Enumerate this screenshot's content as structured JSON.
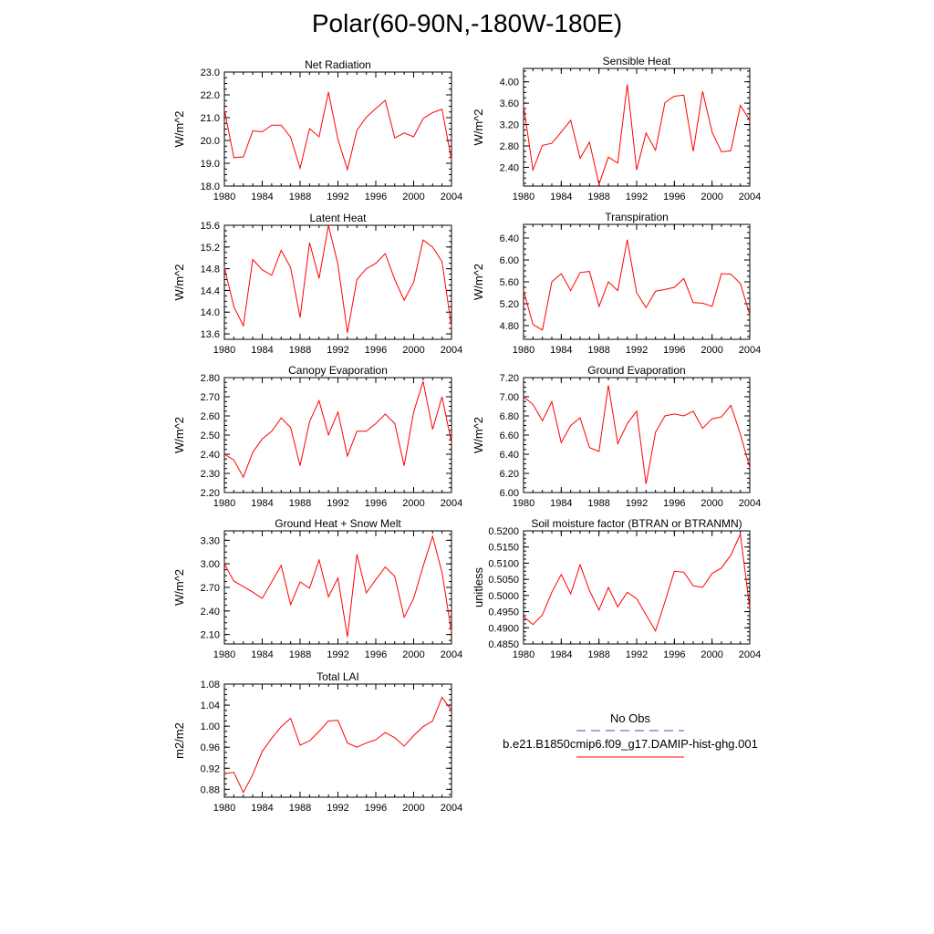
{
  "figure": {
    "title": "Polar(60-90N,-180W-180E)"
  },
  "legend": {
    "obs_label": "No Obs",
    "obs_color": "#4b4bb8",
    "model_label": "b.e21.B1850cmip6.f09_g17.DAMIP-hist-ghg.001",
    "model_color": "#ff0000"
  },
  "chart_data": [
    {
      "type": "line",
      "title": "Net Radiation",
      "ylabel": "W/m^2",
      "xlim": [
        1980,
        2004
      ],
      "ylim": [
        18.0,
        23.0
      ],
      "xticks": [
        1980,
        1984,
        1988,
        1992,
        1996,
        2000,
        2004
      ],
      "yticks": [
        18.0,
        19.0,
        20.0,
        21.0,
        22.0,
        23.0
      ],
      "ytick_labels": [
        "18.0",
        "19.0",
        "20.0",
        "21.0",
        "22.0",
        "23.0"
      ],
      "x": [
        1980,
        1981,
        1982,
        1983,
        1984,
        1985,
        1986,
        1987,
        1988,
        1989,
        1990,
        1991,
        1992,
        1993,
        1994,
        1995,
        1996,
        1997,
        1998,
        1999,
        2000,
        2001,
        2002,
        2003,
        2004
      ],
      "series": [
        {
          "name": "b.e21.B1850cmip6.f09_g17.DAMIP-hist-ghg.001",
          "values": [
            21.35,
            19.25,
            19.28,
            20.42,
            20.38,
            20.67,
            20.67,
            20.15,
            18.78,
            20.52,
            20.16,
            22.12,
            20.05,
            18.72,
            20.44,
            21.02,
            21.4,
            21.76,
            20.11,
            20.33,
            20.16,
            20.96,
            21.22,
            21.37,
            19.15
          ]
        }
      ]
    },
    {
      "type": "line",
      "title": "Sensible Heat",
      "ylabel": "W/m^2",
      "xlim": [
        1980,
        2004
      ],
      "ylim": [
        2.05,
        4.25
      ],
      "xticks": [
        1980,
        1984,
        1988,
        1992,
        1996,
        2000,
        2004
      ],
      "yticks": [
        2.4,
        2.8,
        3.2,
        3.6,
        4.0
      ],
      "ytick_labels": [
        "2.40",
        "2.80",
        "3.20",
        "3.60",
        "4.00"
      ],
      "x": [
        1980,
        1981,
        1982,
        1983,
        1984,
        1985,
        1986,
        1987,
        1988,
        1989,
        1990,
        1991,
        1992,
        1993,
        1994,
        1995,
        1996,
        1997,
        1998,
        1999,
        2000,
        2001,
        2002,
        2003,
        2004
      ],
      "series": [
        {
          "name": "b.e21.B1850cmip6.f09_g17.DAMIP-hist-ghg.001",
          "values": [
            3.56,
            2.35,
            2.81,
            2.85,
            3.06,
            3.28,
            2.57,
            2.87,
            2.08,
            2.59,
            2.48,
            3.95,
            2.35,
            3.04,
            2.72,
            3.61,
            3.73,
            3.75,
            2.7,
            3.82,
            3.06,
            2.69,
            2.71,
            3.56,
            3.28
          ]
        }
      ]
    },
    {
      "type": "line",
      "title": "Latent Heat",
      "ylabel": "W/m^2",
      "xlim": [
        1980,
        2004
      ],
      "ylim": [
        13.5,
        15.6
      ],
      "xticks": [
        1980,
        1984,
        1988,
        1992,
        1996,
        2000,
        2004
      ],
      "yticks": [
        13.6,
        14.0,
        14.4,
        14.8,
        15.2,
        15.6
      ],
      "ytick_labels": [
        "13.6",
        "14.0",
        "14.4",
        "14.8",
        "15.2",
        "15.6"
      ],
      "x": [
        1980,
        1981,
        1982,
        1983,
        1984,
        1985,
        1986,
        1987,
        1988,
        1989,
        1990,
        1991,
        1992,
        1993,
        1994,
        1995,
        1996,
        1997,
        1998,
        1999,
        2000,
        2001,
        2002,
        2003,
        2004
      ],
      "series": [
        {
          "name": "b.e21.B1850cmip6.f09_g17.DAMIP-hist-ghg.001",
          "values": [
            14.82,
            14.1,
            13.75,
            14.97,
            14.78,
            14.68,
            15.14,
            14.82,
            13.9,
            15.28,
            14.62,
            15.6,
            14.88,
            13.62,
            14.6,
            14.8,
            14.9,
            15.08,
            14.6,
            14.22,
            14.55,
            15.33,
            15.2,
            14.93,
            13.73
          ]
        }
      ]
    },
    {
      "type": "line",
      "title": "Transpiration",
      "ylabel": "W/m^2",
      "xlim": [
        1980,
        2004
      ],
      "ylim": [
        4.55,
        6.65
      ],
      "xticks": [
        1980,
        1984,
        1988,
        1992,
        1996,
        2000,
        2004
      ],
      "yticks": [
        4.8,
        5.2,
        5.6,
        6.0,
        6.4
      ],
      "ytick_labels": [
        "4.80",
        "5.20",
        "5.60",
        "6.00",
        "6.40"
      ],
      "x": [
        1980,
        1981,
        1982,
        1983,
        1984,
        1985,
        1986,
        1987,
        1988,
        1989,
        1990,
        1991,
        1992,
        1993,
        1994,
        1995,
        1996,
        1997,
        1998,
        1999,
        2000,
        2001,
        2002,
        2003,
        2004
      ],
      "series": [
        {
          "name": "b.e21.B1850cmip6.f09_g17.DAMIP-hist-ghg.001",
          "values": [
            5.44,
            4.82,
            4.72,
            5.6,
            5.75,
            5.44,
            5.77,
            5.79,
            5.15,
            5.6,
            5.44,
            6.37,
            5.4,
            5.13,
            5.43,
            5.46,
            5.5,
            5.66,
            5.22,
            5.21,
            5.15,
            5.75,
            5.74,
            5.57,
            5.0
          ]
        }
      ]
    },
    {
      "type": "line",
      "title": "Canopy Evaporation",
      "ylabel": "W/m^2",
      "xlim": [
        1980,
        2004
      ],
      "ylim": [
        2.2,
        2.8
      ],
      "xticks": [
        1980,
        1984,
        1988,
        1992,
        1996,
        2000,
        2004
      ],
      "yticks": [
        2.2,
        2.3,
        2.4,
        2.5,
        2.6,
        2.7,
        2.8
      ],
      "ytick_labels": [
        "2.20",
        "2.30",
        "2.40",
        "2.50",
        "2.60",
        "2.70",
        "2.80"
      ],
      "x": [
        1980,
        1981,
        1982,
        1983,
        1984,
        1985,
        1986,
        1987,
        1988,
        1989,
        1990,
        1991,
        1992,
        1993,
        1994,
        1995,
        1996,
        1997,
        1998,
        1999,
        2000,
        2001,
        2002,
        2003,
        2004
      ],
      "series": [
        {
          "name": "b.e21.B1850cmip6.f09_g17.DAMIP-hist-ghg.001",
          "values": [
            2.4,
            2.37,
            2.28,
            2.41,
            2.48,
            2.52,
            2.59,
            2.54,
            2.34,
            2.57,
            2.68,
            2.5,
            2.62,
            2.39,
            2.52,
            2.52,
            2.56,
            2.61,
            2.56,
            2.34,
            2.62,
            2.78,
            2.53,
            2.7,
            2.46
          ]
        }
      ]
    },
    {
      "type": "line",
      "title": "Ground Evaporation",
      "ylabel": "W/m^2",
      "xlim": [
        1980,
        2004
      ],
      "ylim": [
        6.0,
        7.2
      ],
      "xticks": [
        1980,
        1984,
        1988,
        1992,
        1996,
        2000,
        2004
      ],
      "yticks": [
        6.0,
        6.2,
        6.4,
        6.6,
        6.8,
        7.0,
        7.2
      ],
      "ytick_labels": [
        "6.00",
        "6.20",
        "6.40",
        "6.60",
        "6.80",
        "7.00",
        "7.20"
      ],
      "x": [
        1980,
        1981,
        1982,
        1983,
        1984,
        1985,
        1986,
        1987,
        1988,
        1989,
        1990,
        1991,
        1992,
        1993,
        1994,
        1995,
        1996,
        1997,
        1998,
        1999,
        2000,
        2001,
        2002,
        2003,
        2004
      ],
      "series": [
        {
          "name": "b.e21.B1850cmip6.f09_g17.DAMIP-hist-ghg.001",
          "values": [
            7.0,
            6.92,
            6.75,
            6.95,
            6.52,
            6.7,
            6.78,
            6.47,
            6.43,
            7.12,
            6.51,
            6.72,
            6.85,
            6.09,
            6.63,
            6.8,
            6.82,
            6.8,
            6.85,
            6.67,
            6.77,
            6.79,
            6.91,
            6.61,
            6.26
          ]
        }
      ]
    },
    {
      "type": "line",
      "title": "Ground Heat + Snow Melt",
      "ylabel": "W/m^2",
      "xlim": [
        1980,
        2004
      ],
      "ylim": [
        1.98,
        3.42
      ],
      "xticks": [
        1980,
        1984,
        1988,
        1992,
        1996,
        2000,
        2004
      ],
      "yticks": [
        2.1,
        2.4,
        2.7,
        3.0,
        3.3
      ],
      "ytick_labels": [
        "2.10",
        "2.40",
        "2.70",
        "3.00",
        "3.30"
      ],
      "x": [
        1980,
        1981,
        1982,
        1983,
        1984,
        1985,
        1986,
        1987,
        1988,
        1989,
        1990,
        1991,
        1992,
        1993,
        1994,
        1995,
        1996,
        1997,
        1998,
        1999,
        2000,
        2001,
        2002,
        2003,
        2004
      ],
      "series": [
        {
          "name": "b.e21.B1850cmip6.f09_g17.DAMIP-hist-ghg.001",
          "values": [
            3.0,
            2.78,
            2.71,
            2.64,
            2.56,
            2.77,
            2.98,
            2.48,
            2.77,
            2.69,
            3.05,
            2.58,
            2.82,
            2.07,
            3.12,
            2.63,
            2.8,
            2.96,
            2.84,
            2.32,
            2.56,
            2.97,
            3.35,
            2.89,
            2.13
          ]
        }
      ]
    },
    {
      "type": "line",
      "title": "Soil moisture factor (BTRAN or BTRANMN)",
      "ylabel": "unitless",
      "xlim": [
        1980,
        2004
      ],
      "ylim": [
        0.485,
        0.52
      ],
      "xticks": [
        1980,
        1984,
        1988,
        1992,
        1996,
        2000,
        2004
      ],
      "yticks": [
        0.485,
        0.49,
        0.495,
        0.5,
        0.505,
        0.51,
        0.515,
        0.52
      ],
      "ytick_labels": [
        "0.4850",
        "0.4900",
        "0.4950",
        "0.5000",
        "0.5050",
        "0.5100",
        "0.5150",
        "0.5200"
      ],
      "x": [
        1980,
        1981,
        1982,
        1983,
        1984,
        1985,
        1986,
        1987,
        1988,
        1989,
        1990,
        1991,
        1992,
        1993,
        1994,
        1995,
        1996,
        1997,
        1998,
        1999,
        2000,
        2001,
        2002,
        2003,
        2004
      ],
      "series": [
        {
          "name": "b.e21.B1850cmip6.f09_g17.DAMIP-hist-ghg.001",
          "values": [
            0.4935,
            0.491,
            0.494,
            0.501,
            0.5065,
            0.5005,
            0.5095,
            0.5015,
            0.4955,
            0.5025,
            0.4965,
            0.501,
            0.499,
            0.494,
            0.489,
            0.498,
            0.5075,
            0.5072,
            0.503,
            0.5025,
            0.5068,
            0.5085,
            0.5125,
            0.519,
            0.496
          ]
        }
      ]
    },
    {
      "type": "line",
      "title": "Total LAI",
      "ylabel": "m2/m2",
      "xlim": [
        1980,
        2004
      ],
      "ylim": [
        0.865,
        1.08
      ],
      "xticks": [
        1980,
        1984,
        1988,
        1992,
        1996,
        2000,
        2004
      ],
      "yticks": [
        0.88,
        0.92,
        0.96,
        1.0,
        1.04,
        1.08
      ],
      "ytick_labels": [
        "0.88",
        "0.92",
        "0.96",
        "1.00",
        "1.04",
        "1.08"
      ],
      "x": [
        1980,
        1981,
        1982,
        1983,
        1984,
        1985,
        1986,
        1987,
        1988,
        1989,
        1990,
        1991,
        1992,
        1993,
        1994,
        1995,
        1996,
        1997,
        1998,
        1999,
        2000,
        2001,
        2002,
        2003,
        2004
      ],
      "series": [
        {
          "name": "b.e21.B1850cmip6.f09_g17.DAMIP-hist-ghg.001",
          "values": [
            0.91,
            0.912,
            0.874,
            0.908,
            0.952,
            0.977,
            0.999,
            1.015,
            0.964,
            0.972,
            0.99,
            1.01,
            1.011,
            0.968,
            0.96,
            0.968,
            0.974,
            0.988,
            0.978,
            0.962,
            0.982,
            0.999,
            1.01,
            1.055,
            1.03
          ]
        }
      ]
    }
  ]
}
